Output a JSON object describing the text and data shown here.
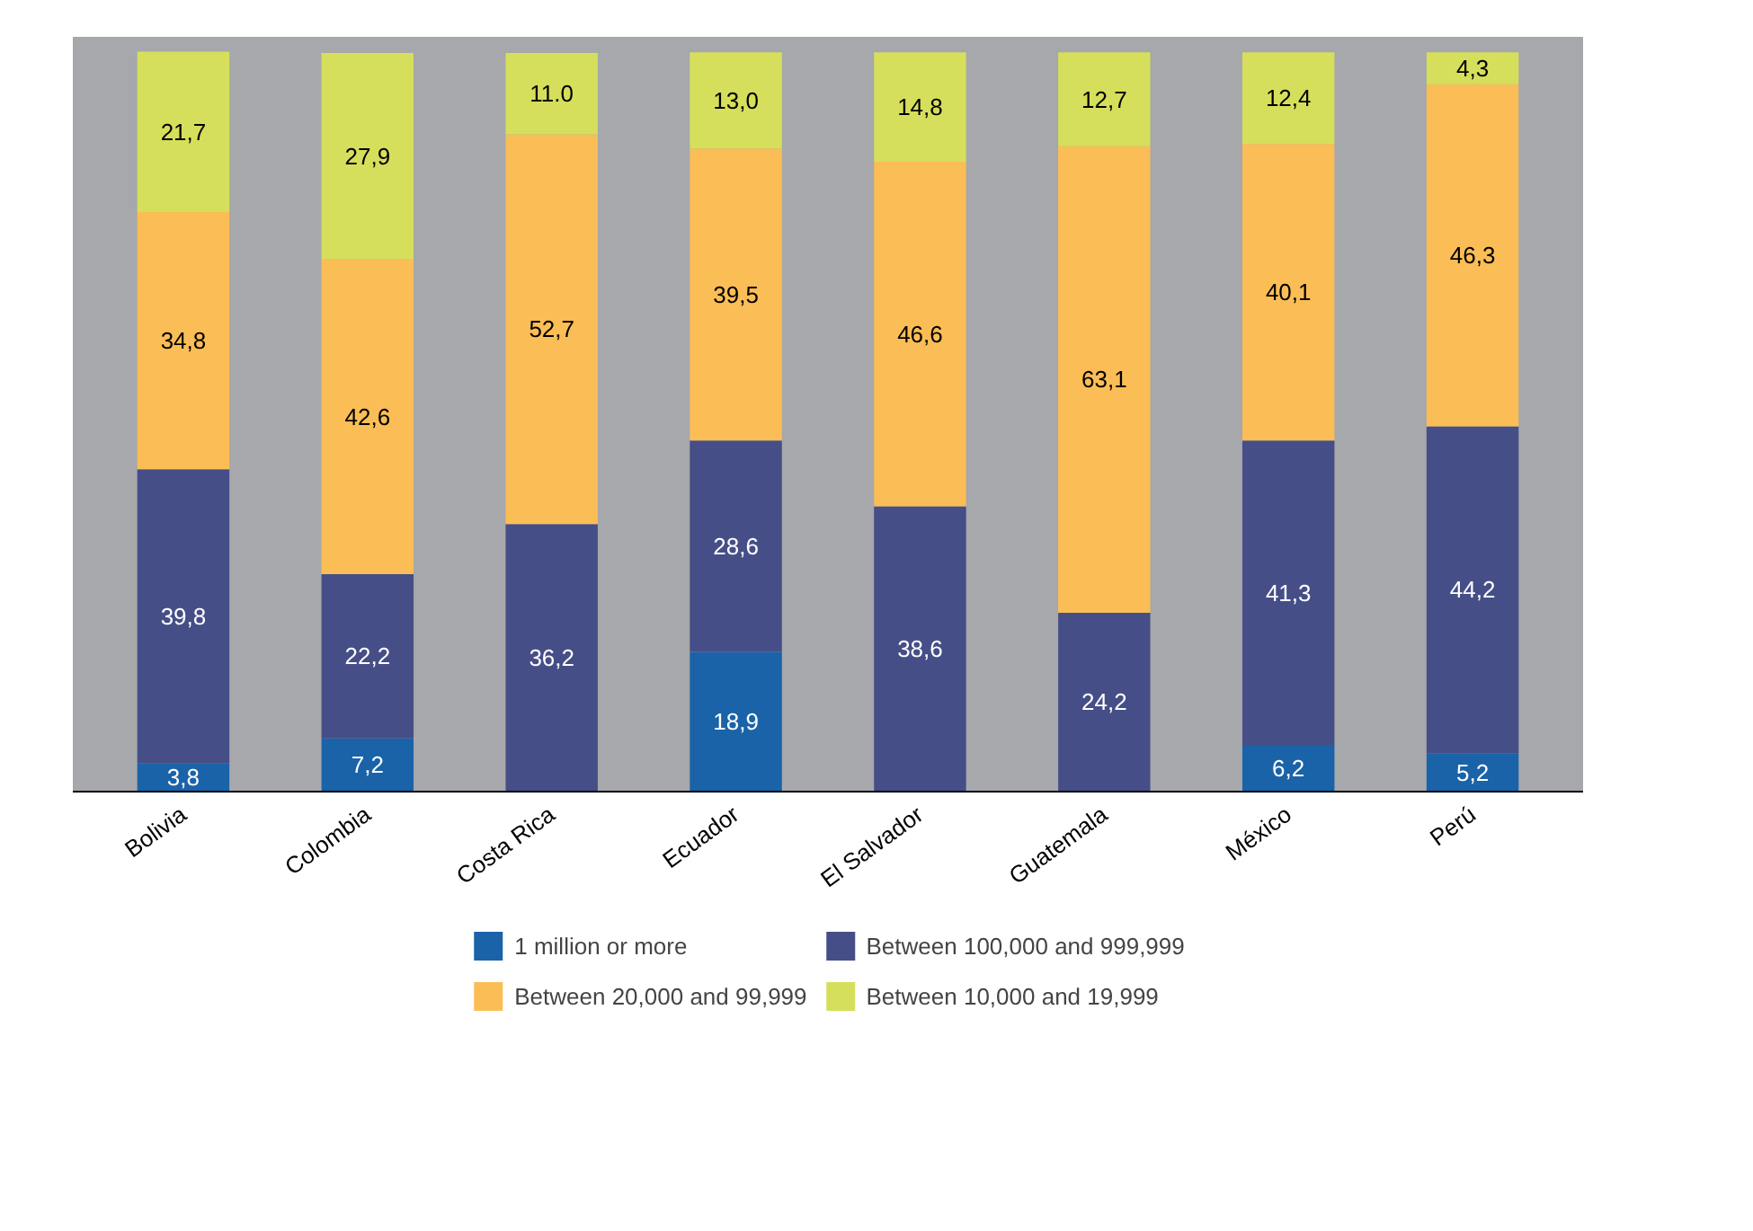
{
  "chart_data": {
    "type": "bar",
    "stacked": true,
    "categories": [
      "Bolivia",
      "Colombia",
      "Costa Rica",
      "Ecuador",
      "El Salvador",
      "Guatemala",
      "México",
      "Perú"
    ],
    "series": [
      {
        "name": "1 million or more",
        "color": "#1a63a8",
        "values": [
          3.8,
          7.2,
          null,
          18.9,
          null,
          null,
          6.2,
          5.2
        ],
        "value_labels": [
          "3,8",
          "7,2",
          null,
          "18,9",
          null,
          null,
          "6,2",
          "5,2"
        ]
      },
      {
        "name": "Between 100,000 and 999,999",
        "color": "#464e87",
        "values": [
          39.8,
          22.2,
          36.2,
          28.6,
          38.6,
          24.2,
          41.3,
          44.2
        ],
        "value_labels": [
          "39,8",
          "22,2",
          "36,2",
          "28,6",
          "38,6",
          "24,2",
          "41,3",
          "44,2"
        ]
      },
      {
        "name": "Between 20,000 and 99,999",
        "color": "#fbbd55",
        "values": [
          34.8,
          42.6,
          52.7,
          39.5,
          46.6,
          63.1,
          40.1,
          46.3
        ],
        "value_labels": [
          "34,8",
          "42,6",
          "52,7",
          "39,5",
          "46,6",
          "63,1",
          "40,1",
          "46,3"
        ]
      },
      {
        "name": "Between 10,000 and 19,999",
        "color": "#d5df5b",
        "values": [
          21.7,
          27.9,
          11.0,
          13.0,
          14.8,
          12.7,
          12.4,
          4.3
        ],
        "value_labels": [
          "21,7",
          "27,9",
          "11.0",
          "13,0",
          "14,8",
          "12,7",
          "12,4",
          "4,3"
        ]
      }
    ],
    "legend": "bottom"
  }
}
